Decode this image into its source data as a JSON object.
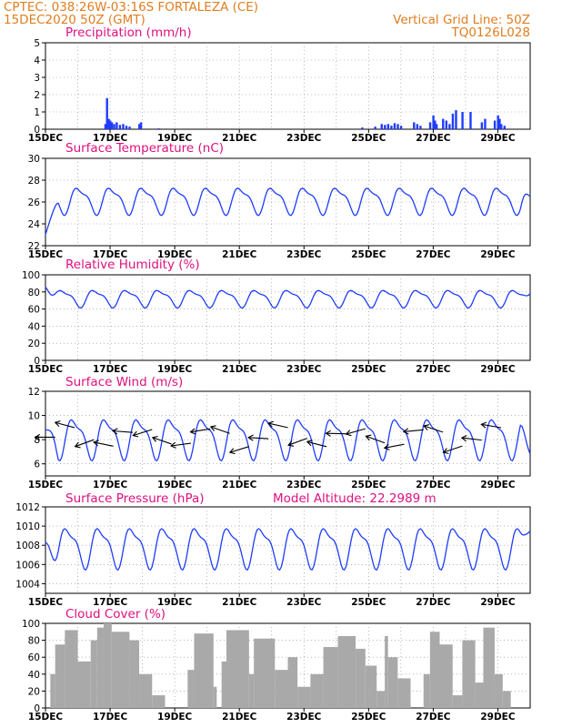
{
  "header": {
    "station_line": "CPTEC:   038:26W-03:16S   FORTALEZA (CE)",
    "date_line": "15DEC2020 50Z (GMT)",
    "grid_line": "Vertical Grid Line: 50Z",
    "code": "TQ0126L028"
  },
  "colors": {
    "header": "#e07d1f",
    "title": "#e0107f",
    "series": "#1f3cff",
    "cloud": "#a9a9a9"
  },
  "date_ticks": [
    "15DEC",
    "17DEC",
    "19DEC",
    "21DEC",
    "23DEC",
    "25DEC",
    "27DEC",
    "29DEC"
  ],
  "model_altitude": "Model Altitude: 22.2989 m",
  "chart_data": [
    {
      "type": "bar",
      "title": "Precipitation (mm/h)",
      "ylim": [
        0,
        5
      ],
      "yticks": [
        "0",
        "1",
        "2",
        "3",
        "4",
        "5"
      ],
      "x_unit": "days since 15DEC",
      "x_range": [
        0,
        15
      ],
      "bars": [
        [
          1.85,
          0.3
        ],
        [
          1.9,
          1.8
        ],
        [
          1.95,
          0.6
        ],
        [
          2.0,
          0.5
        ],
        [
          2.05,
          0.4
        ],
        [
          2.12,
          0.3
        ],
        [
          2.2,
          0.4
        ],
        [
          2.3,
          0.25
        ],
        [
          2.4,
          0.3
        ],
        [
          2.5,
          0.2
        ],
        [
          2.6,
          0.15
        ],
        [
          2.9,
          0.3
        ],
        [
          2.95,
          0.4
        ],
        [
          3.5,
          0.05
        ],
        [
          9.8,
          0.1
        ],
        [
          10.2,
          0.15
        ],
        [
          10.4,
          0.3
        ],
        [
          10.5,
          0.25
        ],
        [
          10.6,
          0.3
        ],
        [
          10.7,
          0.2
        ],
        [
          10.8,
          0.35
        ],
        [
          10.9,
          0.3
        ],
        [
          11.0,
          0.2
        ],
        [
          11.4,
          0.4
        ],
        [
          11.5,
          0.3
        ],
        [
          11.6,
          0.2
        ],
        [
          11.9,
          0.4
        ],
        [
          12.0,
          0.8
        ],
        [
          12.05,
          0.5
        ],
        [
          12.1,
          0.3
        ],
        [
          12.3,
          0.6
        ],
        [
          12.4,
          0.5
        ],
        [
          12.5,
          0.3
        ],
        [
          12.6,
          0.9
        ],
        [
          12.7,
          1.1
        ],
        [
          12.9,
          1.0
        ],
        [
          13.15,
          1.0
        ],
        [
          13.5,
          0.4
        ],
        [
          13.6,
          0.6
        ],
        [
          13.9,
          0.5
        ],
        [
          14.0,
          0.8
        ],
        [
          14.05,
          0.6
        ],
        [
          14.1,
          0.3
        ],
        [
          14.2,
          0.2
        ]
      ]
    },
    {
      "type": "line",
      "title": "Surface Temperature (nC)",
      "ylim": [
        22,
        30
      ],
      "yticks": [
        "22",
        "24",
        "26",
        "28",
        "30"
      ],
      "series": [
        {
          "mean": 26.2,
          "amplitude": 1.1,
          "start": 23.0,
          "end": 26.5
        }
      ]
    },
    {
      "type": "line",
      "title": "Relative Humidity (%)",
      "ylim": [
        0,
        100
      ],
      "yticks": [
        "0",
        "20",
        "40",
        "60",
        "80",
        "100"
      ],
      "series": [
        {
          "mean": 73,
          "amplitude": 9,
          "start": 86,
          "end": 78
        }
      ]
    },
    {
      "type": "line",
      "title": "Surface Wind (m/s)",
      "ylim": [
        5,
        12
      ],
      "yticks": [
        "6",
        "8",
        "10",
        "12"
      ],
      "series": [
        {
          "mean": 8.2,
          "amplitude": 1.5,
          "start": 8.8,
          "end": 6.8
        }
      ],
      "wind_arrows": 24
    },
    {
      "type": "line",
      "title": "Surface Pressure (hPa)",
      "ylim": [
        1003,
        1012
      ],
      "yticks": [
        "1004",
        "1006",
        "1008",
        "1010",
        "1012"
      ],
      "series": [
        {
          "mean": 1007.9,
          "amplitude": 1.9,
          "start": 1008.3,
          "end": 1009.5
        }
      ]
    },
    {
      "type": "area",
      "title": "Cloud Cover (%)",
      "ylim": [
        0,
        100
      ],
      "yticks": [
        "0",
        "20",
        "40",
        "60",
        "80",
        "100"
      ],
      "segments": [
        [
          0.15,
          0.3,
          40
        ],
        [
          0.3,
          0.6,
          75
        ],
        [
          0.6,
          1.0,
          92
        ],
        [
          1.0,
          1.4,
          55
        ],
        [
          1.4,
          1.6,
          80
        ],
        [
          1.6,
          1.8,
          95
        ],
        [
          1.8,
          2.05,
          100
        ],
        [
          2.05,
          2.6,
          90
        ],
        [
          2.6,
          2.9,
          80
        ],
        [
          2.9,
          3.3,
          40
        ],
        [
          3.3,
          3.7,
          15
        ],
        [
          3.7,
          4.05,
          0
        ],
        [
          4.4,
          4.6,
          45
        ],
        [
          4.6,
          5.2,
          88
        ],
        [
          5.2,
          5.3,
          25
        ],
        [
          5.3,
          5.45,
          0
        ],
        [
          5.45,
          5.6,
          55
        ],
        [
          5.6,
          6.3,
          92
        ],
        [
          6.3,
          6.45,
          40
        ],
        [
          6.45,
          7.1,
          82
        ],
        [
          7.1,
          7.5,
          45
        ],
        [
          7.5,
          7.8,
          60
        ],
        [
          7.8,
          8.2,
          25
        ],
        [
          8.2,
          8.6,
          40
        ],
        [
          8.6,
          9.05,
          72
        ],
        [
          9.05,
          9.6,
          85
        ],
        [
          9.6,
          9.9,
          70
        ],
        [
          9.9,
          10.25,
          50
        ],
        [
          10.25,
          10.5,
          20
        ],
        [
          10.5,
          10.6,
          85
        ],
        [
          10.6,
          10.9,
          60
        ],
        [
          10.9,
          11.3,
          35
        ],
        [
          11.3,
          11.7,
          0
        ],
        [
          11.7,
          11.9,
          40
        ],
        [
          11.9,
          12.2,
          90
        ],
        [
          12.2,
          12.6,
          75
        ],
        [
          12.6,
          12.9,
          15
        ],
        [
          12.9,
          13.3,
          80
        ],
        [
          13.3,
          13.55,
          30
        ],
        [
          13.55,
          13.9,
          95
        ],
        [
          13.9,
          14.15,
          40
        ],
        [
          14.15,
          14.4,
          20
        ]
      ]
    }
  ]
}
